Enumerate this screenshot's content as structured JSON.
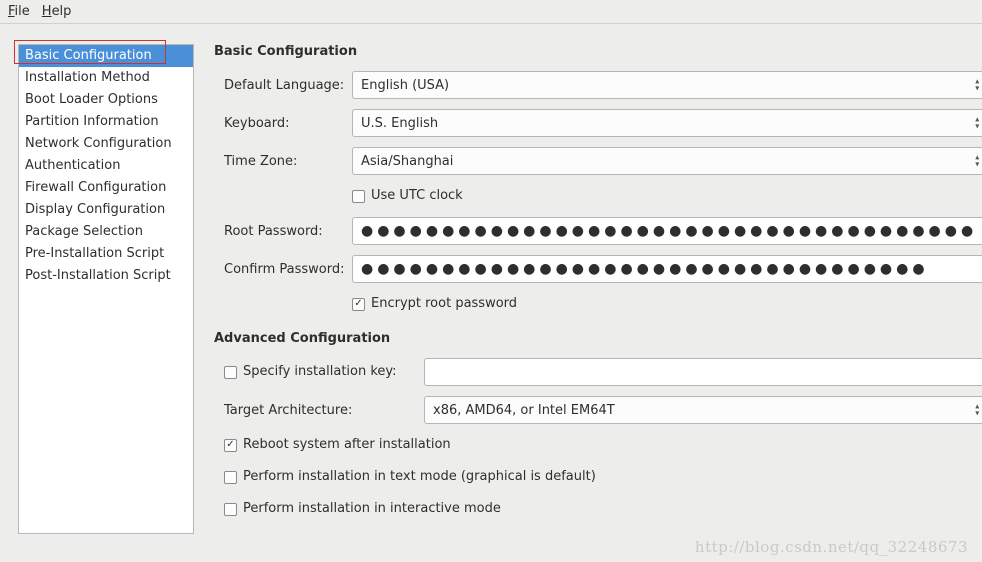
{
  "menubar": {
    "file": "File",
    "help": "Help"
  },
  "sidebar": {
    "items": [
      {
        "label": "Basic Configuration",
        "selected": true
      },
      {
        "label": "Installation Method"
      },
      {
        "label": "Boot Loader Options"
      },
      {
        "label": "Partition Information"
      },
      {
        "label": "Network Configuration"
      },
      {
        "label": "Authentication"
      },
      {
        "label": "Firewall Configuration"
      },
      {
        "label": "Display Configuration"
      },
      {
        "label": "Package Selection"
      },
      {
        "label": "Pre-Installation Script"
      },
      {
        "label": "Post-Installation Script"
      }
    ]
  },
  "basic": {
    "title": "Basic Configuration",
    "language_label": "Default Language:",
    "language_value": "English (USA)",
    "keyboard_label": "Keyboard:",
    "keyboard_value": "U.S. English",
    "timezone_label": "Time Zone:",
    "timezone_value": "Asia/Shanghai",
    "use_utc_label": "Use UTC clock",
    "use_utc_checked": false,
    "root_pw_label": "Root Password:",
    "root_pw_value": "●●●●●●●●●●●●●●●●●●●●●●●●●●●●●●●●●●●●●●",
    "confirm_pw_label": "Confirm Password:",
    "confirm_pw_value": "●●●●●●●●●●●●●●●●●●●●●●●●●●●●●●●●●●●",
    "encrypt_label": "Encrypt root password",
    "encrypt_checked": true
  },
  "advanced": {
    "title": "Advanced Configuration",
    "install_key_label": "Specify installation key:",
    "install_key_checked": false,
    "install_key_value": "",
    "arch_label": "Target Architecture:",
    "arch_value": "x86, AMD64, or Intel EM64T",
    "reboot_label": "Reboot system after installation",
    "reboot_checked": true,
    "textmode_label": "Perform installation in text mode (graphical is default)",
    "textmode_checked": false,
    "interactive_label": "Perform installation in interactive mode",
    "interactive_checked": false
  },
  "watermark": "http://blog.csdn.net/qq_32248673"
}
